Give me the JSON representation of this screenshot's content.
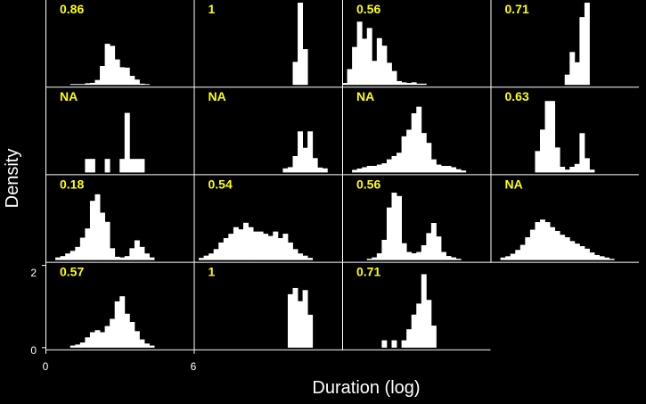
{
  "colors": {
    "background": "#000000",
    "axis": "#ffffff",
    "bars": "#ffffff",
    "panel_label": "#ffff00",
    "text": "#ffffff"
  },
  "figure": {
    "xlabel": "Duration (log)",
    "ylabel": "Density"
  },
  "chart_data": {
    "type": "bar",
    "layout": "small-multiples",
    "rows": 4,
    "cols": 4,
    "xlim": [
      0,
      6
    ],
    "x_ticks": [
      "0",
      "6"
    ],
    "y_ticks": [
      "0",
      "2"
    ],
    "ylim": [
      0,
      2
    ],
    "bin_width": 0.2,
    "panels": [
      {
        "label": "0.86",
        "x": [
          1.0,
          1.2,
          1.4,
          1.6,
          1.8,
          2.0,
          2.2,
          2.4,
          2.6,
          2.8,
          3.0,
          3.2,
          3.4,
          3.6,
          3.8,
          4.0
        ],
        "values": [
          0.02,
          0.02,
          0.02,
          0.04,
          0.05,
          0.12,
          0.46,
          1.0,
          0.95,
          0.62,
          0.43,
          0.42,
          0.22,
          0.13,
          0.03,
          0.02
        ]
      },
      {
        "label": "1",
        "x": [
          4.0,
          4.2,
          4.4
        ],
        "values": [
          0.56,
          2.0,
          0.87
        ]
      },
      {
        "label": "0.56",
        "x": [
          0.0,
          0.2,
          0.4,
          0.6,
          0.8,
          1.0,
          1.2,
          1.4,
          1.6,
          1.8,
          2.0,
          2.2,
          2.4,
          2.6,
          2.8,
          3.0,
          3.2
        ],
        "values": [
          0.03,
          0.25,
          0.6,
          1.0,
          0.73,
          0.9,
          0.38,
          0.74,
          0.62,
          0.35,
          0.22,
          0.06,
          0.04,
          0.03,
          0.04,
          0.02,
          0.02
        ],
        "ymax": 1.3
      },
      {
        "label": "0.71",
        "x": [
          3.0,
          3.2,
          3.4,
          3.6,
          3.8
        ],
        "values": [
          0.25,
          0.8,
          0.55,
          1.65,
          2.0
        ]
      },
      {
        "label": "NA",
        "x": [
          1.6,
          1.8,
          2.4,
          3.0,
          3.2,
          3.4,
          3.6,
          3.8
        ],
        "values": [
          0.33,
          0.33,
          0.33,
          0.33,
          1.45,
          0.33,
          0.33,
          0.33
        ]
      },
      {
        "label": "NA",
        "x": [
          3.6,
          3.8,
          4.0,
          4.2,
          4.4,
          4.6,
          4.8,
          5.0,
          5.2
        ],
        "values": [
          0.1,
          0.13,
          0.4,
          1.0,
          0.6,
          1.0,
          0.35,
          0.12,
          0.1
        ]
      },
      {
        "label": "NA",
        "x": [
          0.4,
          0.6,
          0.8,
          1.0,
          1.2,
          1.4,
          1.6,
          1.8,
          2.0,
          2.2,
          2.4,
          2.6,
          2.8,
          3.0,
          3.2,
          3.4,
          3.6,
          3.8,
          4.0,
          4.2,
          4.4,
          4.6,
          4.8
        ],
        "values": [
          0.04,
          0.06,
          0.08,
          0.1,
          0.1,
          0.12,
          0.14,
          0.2,
          0.25,
          0.3,
          0.55,
          0.65,
          0.9,
          1.0,
          0.6,
          0.45,
          0.2,
          0.12,
          0.1,
          0.1,
          0.08,
          0.05,
          0.03
        ],
        "ymax": 1.25
      },
      {
        "label": "0.63",
        "x": [
          1.8,
          2.0,
          2.2,
          2.4,
          2.6,
          2.8,
          3.0,
          3.2,
          3.4,
          3.6,
          3.8,
          4.0
        ],
        "values": [
          0.3,
          0.6,
          1.0,
          1.0,
          0.35,
          0.08,
          0.04,
          0.08,
          0.12,
          0.55,
          0.2,
          0.04
        ],
        "ymax": 1.15
      },
      {
        "label": "0.18",
        "x": [
          0.4,
          0.6,
          0.8,
          1.0,
          1.2,
          1.4,
          1.6,
          1.8,
          2.0,
          2.2,
          2.4,
          2.6,
          2.8,
          3.0,
          3.2,
          3.4,
          3.6,
          3.8,
          4.0,
          4.2
        ],
        "values": [
          0.04,
          0.06,
          0.1,
          0.14,
          0.2,
          0.34,
          0.48,
          0.9,
          1.0,
          0.72,
          0.58,
          0.18,
          0.05,
          0.04,
          0.06,
          0.18,
          0.3,
          0.2,
          0.1,
          0.04
        ],
        "ymax": 1.25
      },
      {
        "label": "0.54",
        "x": [
          0.2,
          0.4,
          0.6,
          0.8,
          1.0,
          1.2,
          1.4,
          1.6,
          1.8,
          2.0,
          2.2,
          2.4,
          2.6,
          2.8,
          3.0,
          3.2,
          3.4,
          3.6,
          3.8,
          4.0,
          4.2,
          4.4,
          4.6
        ],
        "values": [
          0.02,
          0.04,
          0.06,
          0.1,
          0.16,
          0.2,
          0.24,
          0.3,
          0.28,
          0.34,
          0.3,
          0.26,
          0.26,
          0.24,
          0.22,
          0.26,
          0.2,
          0.24,
          0.16,
          0.1,
          0.06,
          0.04,
          0.02
        ],
        "ymax": 0.75
      },
      {
        "label": "0.56",
        "x": [
          1.0,
          1.2,
          1.4,
          1.6,
          1.8,
          2.0,
          2.2,
          2.4,
          2.6,
          2.8,
          3.0,
          3.2,
          3.4,
          3.6,
          3.8,
          4.0,
          4.2,
          4.4,
          4.6
        ],
        "values": [
          0.02,
          0.04,
          0.1,
          0.3,
          0.78,
          1.0,
          0.95,
          0.25,
          0.12,
          0.1,
          0.12,
          0.22,
          0.4,
          0.55,
          0.35,
          0.12,
          0.06,
          0.04,
          0.02
        ],
        "ymax": 1.22
      },
      {
        "label": "NA",
        "x": [
          0.4,
          0.6,
          0.8,
          1.0,
          1.2,
          1.4,
          1.6,
          1.8,
          2.0,
          2.2,
          2.4,
          2.6,
          2.8,
          3.0,
          3.2,
          3.4,
          3.6,
          3.8,
          4.0,
          4.2,
          4.4,
          4.6,
          4.8
        ],
        "values": [
          0.04,
          0.06,
          0.1,
          0.16,
          0.24,
          0.36,
          0.48,
          0.6,
          0.64,
          0.6,
          0.52,
          0.46,
          0.4,
          0.36,
          0.3,
          0.26,
          0.22,
          0.18,
          0.12,
          0.08,
          0.06,
          0.04,
          0.02
        ],
        "ymax": 1.3
      },
      {
        "label": "0.57",
        "x": [
          1.0,
          1.2,
          1.4,
          1.6,
          1.8,
          2.0,
          2.2,
          2.4,
          2.6,
          2.8,
          3.0,
          3.2,
          3.4,
          3.6,
          3.8,
          4.0,
          4.2
        ],
        "values": [
          0.04,
          0.06,
          0.1,
          0.2,
          0.3,
          0.34,
          0.3,
          0.42,
          0.56,
          0.9,
          1.0,
          0.66,
          0.5,
          0.32,
          0.16,
          0.08,
          0.04
        ],
        "ymax": 1.6
      },
      {
        "label": "1",
        "x": [
          3.8,
          4.0,
          4.2,
          4.4,
          4.6
        ],
        "values": [
          1.3,
          1.45,
          1.13,
          1.4,
          0.8
        ]
      },
      {
        "label": "0.71",
        "x": [
          1.6,
          2.0,
          2.4,
          2.6,
          2.8,
          3.0,
          3.2,
          3.4,
          3.6
        ],
        "values": [
          0.1,
          0.1,
          0.1,
          0.25,
          0.45,
          0.6,
          1.0,
          0.65,
          0.3
        ],
        "ymax": 1.12
      }
    ]
  }
}
